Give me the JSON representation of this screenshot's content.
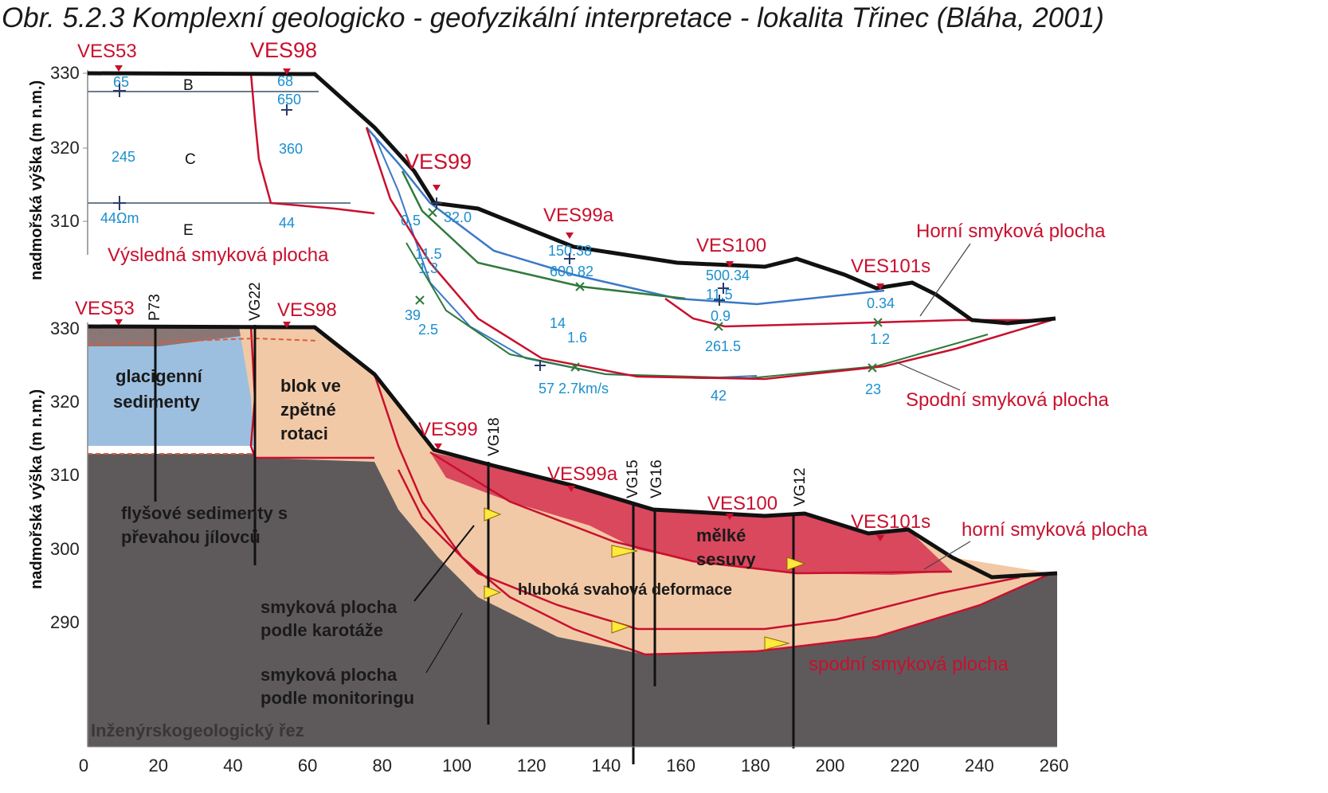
{
  "title": "Obr. 5.2.3  Komplexní geologicko - geofyzikální interpretace - lokalita Třinec (Bláha, 2001)",
  "upper": {
    "ylabel": "nadmořská výška (m n.m.)",
    "yticks": [
      "330",
      "320",
      "310"
    ],
    "ves": [
      "VES53",
      "VES98",
      "VES99",
      "VES99a",
      "VES100",
      "VES101s"
    ],
    "layers": [
      "B",
      "C",
      "E"
    ],
    "resistivities": [
      "65",
      "68",
      "650",
      "245",
      "360",
      "44Ωm",
      "44",
      "0,5",
      "32.0",
      "11.5",
      "1.3",
      "150.38",
      "600.82",
      "500.34",
      "11.5",
      "0.9",
      "261.5",
      "0.34",
      "1.2",
      "39",
      "2.5",
      "14",
      "1.6",
      "57 2.7km/s",
      "42",
      "23"
    ],
    "labels": {
      "vysledna": "Výsledná smyková plocha",
      "horni": "Horní smyková plocha",
      "spodni": "Spodní smyková plocha"
    }
  },
  "lower": {
    "ylabel": "nadmořská výška (m n.m.)",
    "yticks": [
      "330",
      "320",
      "310",
      "300",
      "290"
    ],
    "ves": [
      "VES53",
      "VES98",
      "VES99",
      "VES99a",
      "VES100",
      "VES101s"
    ],
    "wells": [
      "P73",
      "VG22",
      "VG18",
      "VG15",
      "VG16",
      "VG12"
    ],
    "units": {
      "glacigenni_1": "glacigenní",
      "glacigenni_2": "sedimenty",
      "blok_1": "blok ve",
      "blok_2": "zpětné",
      "blok_3": "rotaci",
      "flys_1": "flyšové sedimenty s",
      "flys_2": "převahou jílovců",
      "hluboka": "hluboká svahová deformace",
      "melke_1": "mělké",
      "melke_2": "sesuvy",
      "karotaz_1": "smyková plocha",
      "karotaz_2": "podle karotáže",
      "monitoring_1": "smyková plocha",
      "monitoring_2": "podle monitoringu",
      "section": "Inženýrskogeologický řez"
    },
    "slip_labels": {
      "horni": "horní smyková plocha",
      "spodni": "spodní smyková plocha"
    },
    "xticks": [
      "0",
      "20",
      "40",
      "60",
      "80",
      "100",
      "120",
      "140",
      "160",
      "180",
      "200",
      "220",
      "240",
      "260"
    ]
  },
  "colors": {
    "red": "#c8102e",
    "blue": "#1a8fd0",
    "glacial": "#9cbfe0",
    "flysch": "#5e5a5c",
    "deep": "#f2c9a6",
    "shallow": "#d9485d"
  }
}
